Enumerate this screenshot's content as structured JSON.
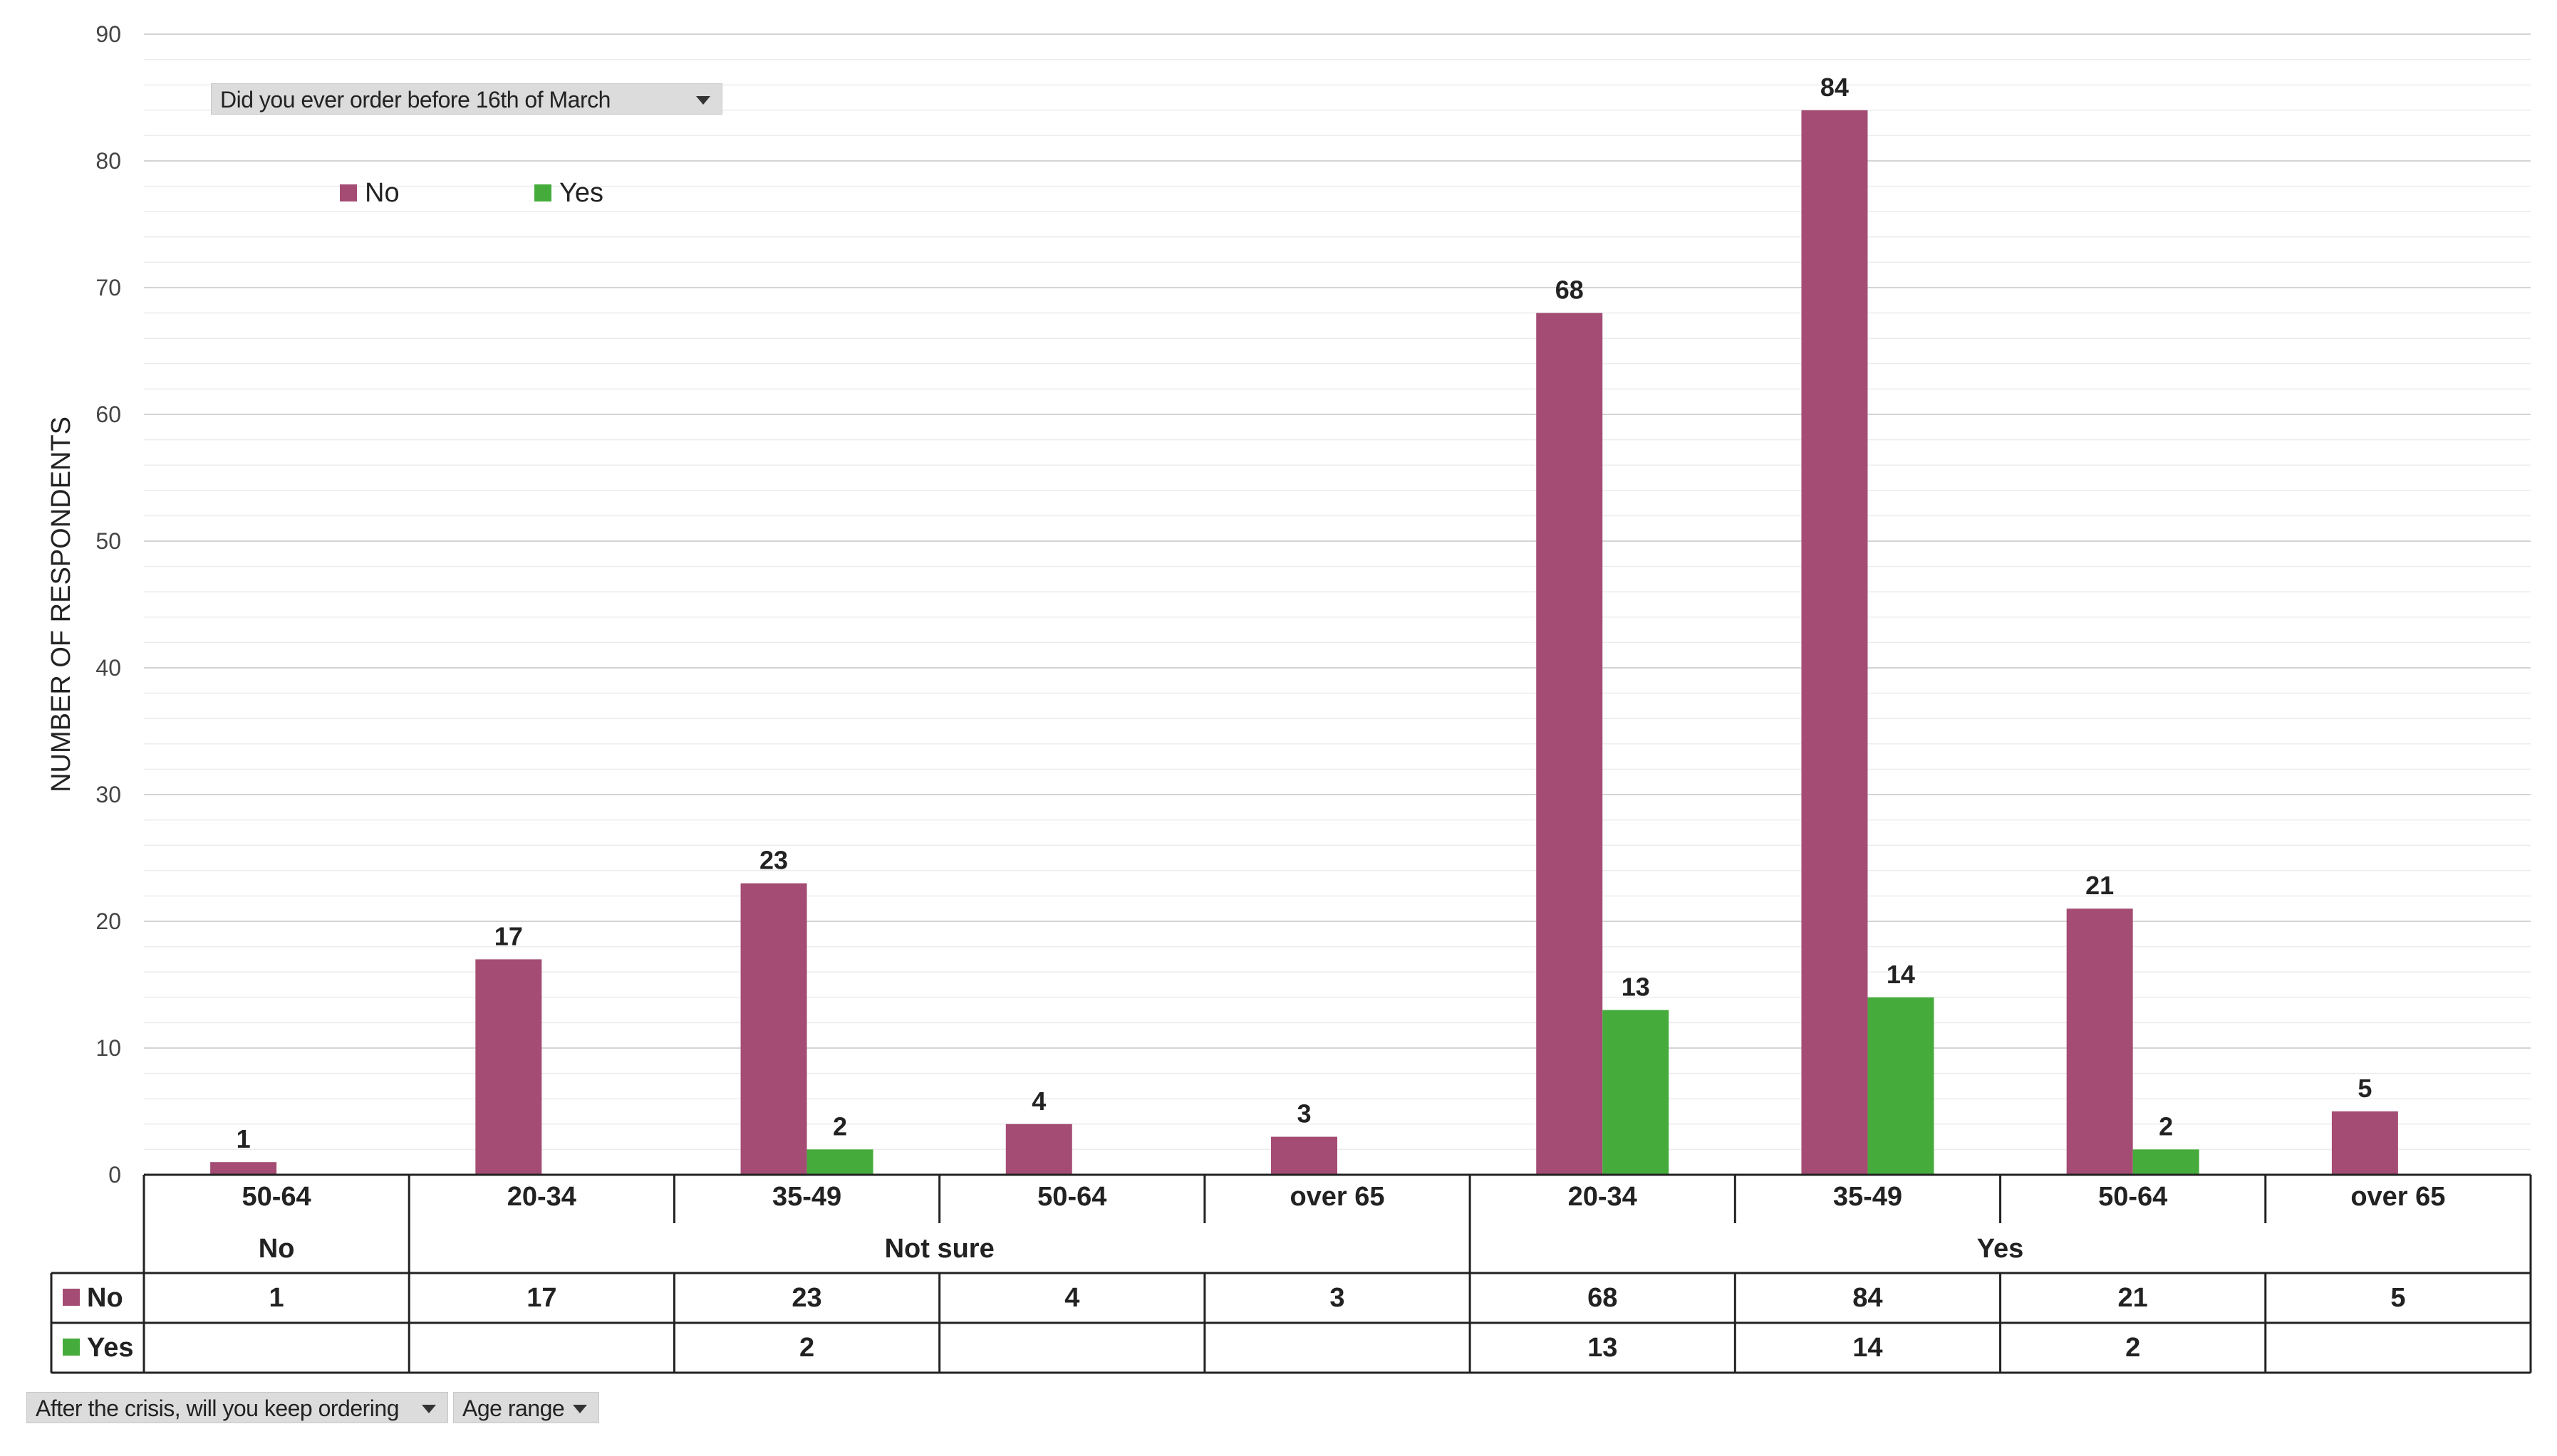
{
  "colors": {
    "no": "#a44c74",
    "yes": "#45ac3c"
  },
  "filters": {
    "top": "Did  you ever order before 16th of March",
    "bottom_left": "After the crisis, will  you keep ordering",
    "bottom_right": "Age range"
  },
  "icons": {
    "dropdown": "chevron-down-icon"
  },
  "chart_data": {
    "type": "bar",
    "ylabel": "NUMBER OF RESPONDENTS",
    "ylim": [
      0,
      90
    ],
    "yticks": [
      0,
      10,
      20,
      30,
      40,
      50,
      60,
      70,
      80,
      90
    ],
    "grid": true,
    "legend_position": "top-left",
    "groups": [
      {
        "label": "No",
        "categories": [
          "50-64"
        ]
      },
      {
        "label": "Not sure",
        "categories": [
          "20-34",
          "35-49",
          "50-64",
          "over 65"
        ]
      },
      {
        "label": "Yes",
        "categories": [
          "20-34",
          "35-49",
          "50-64",
          "over 65"
        ]
      }
    ],
    "categories": [
      "50-64",
      "20-34",
      "35-49",
      "50-64",
      "over 65",
      "20-34",
      "35-49",
      "50-64",
      "over 65"
    ],
    "series": [
      {
        "name": "No",
        "values": [
          1,
          17,
          23,
          4,
          3,
          68,
          84,
          21,
          5
        ]
      },
      {
        "name": "Yes",
        "values": [
          null,
          null,
          2,
          null,
          null,
          13,
          14,
          2,
          null
        ]
      }
    ]
  }
}
